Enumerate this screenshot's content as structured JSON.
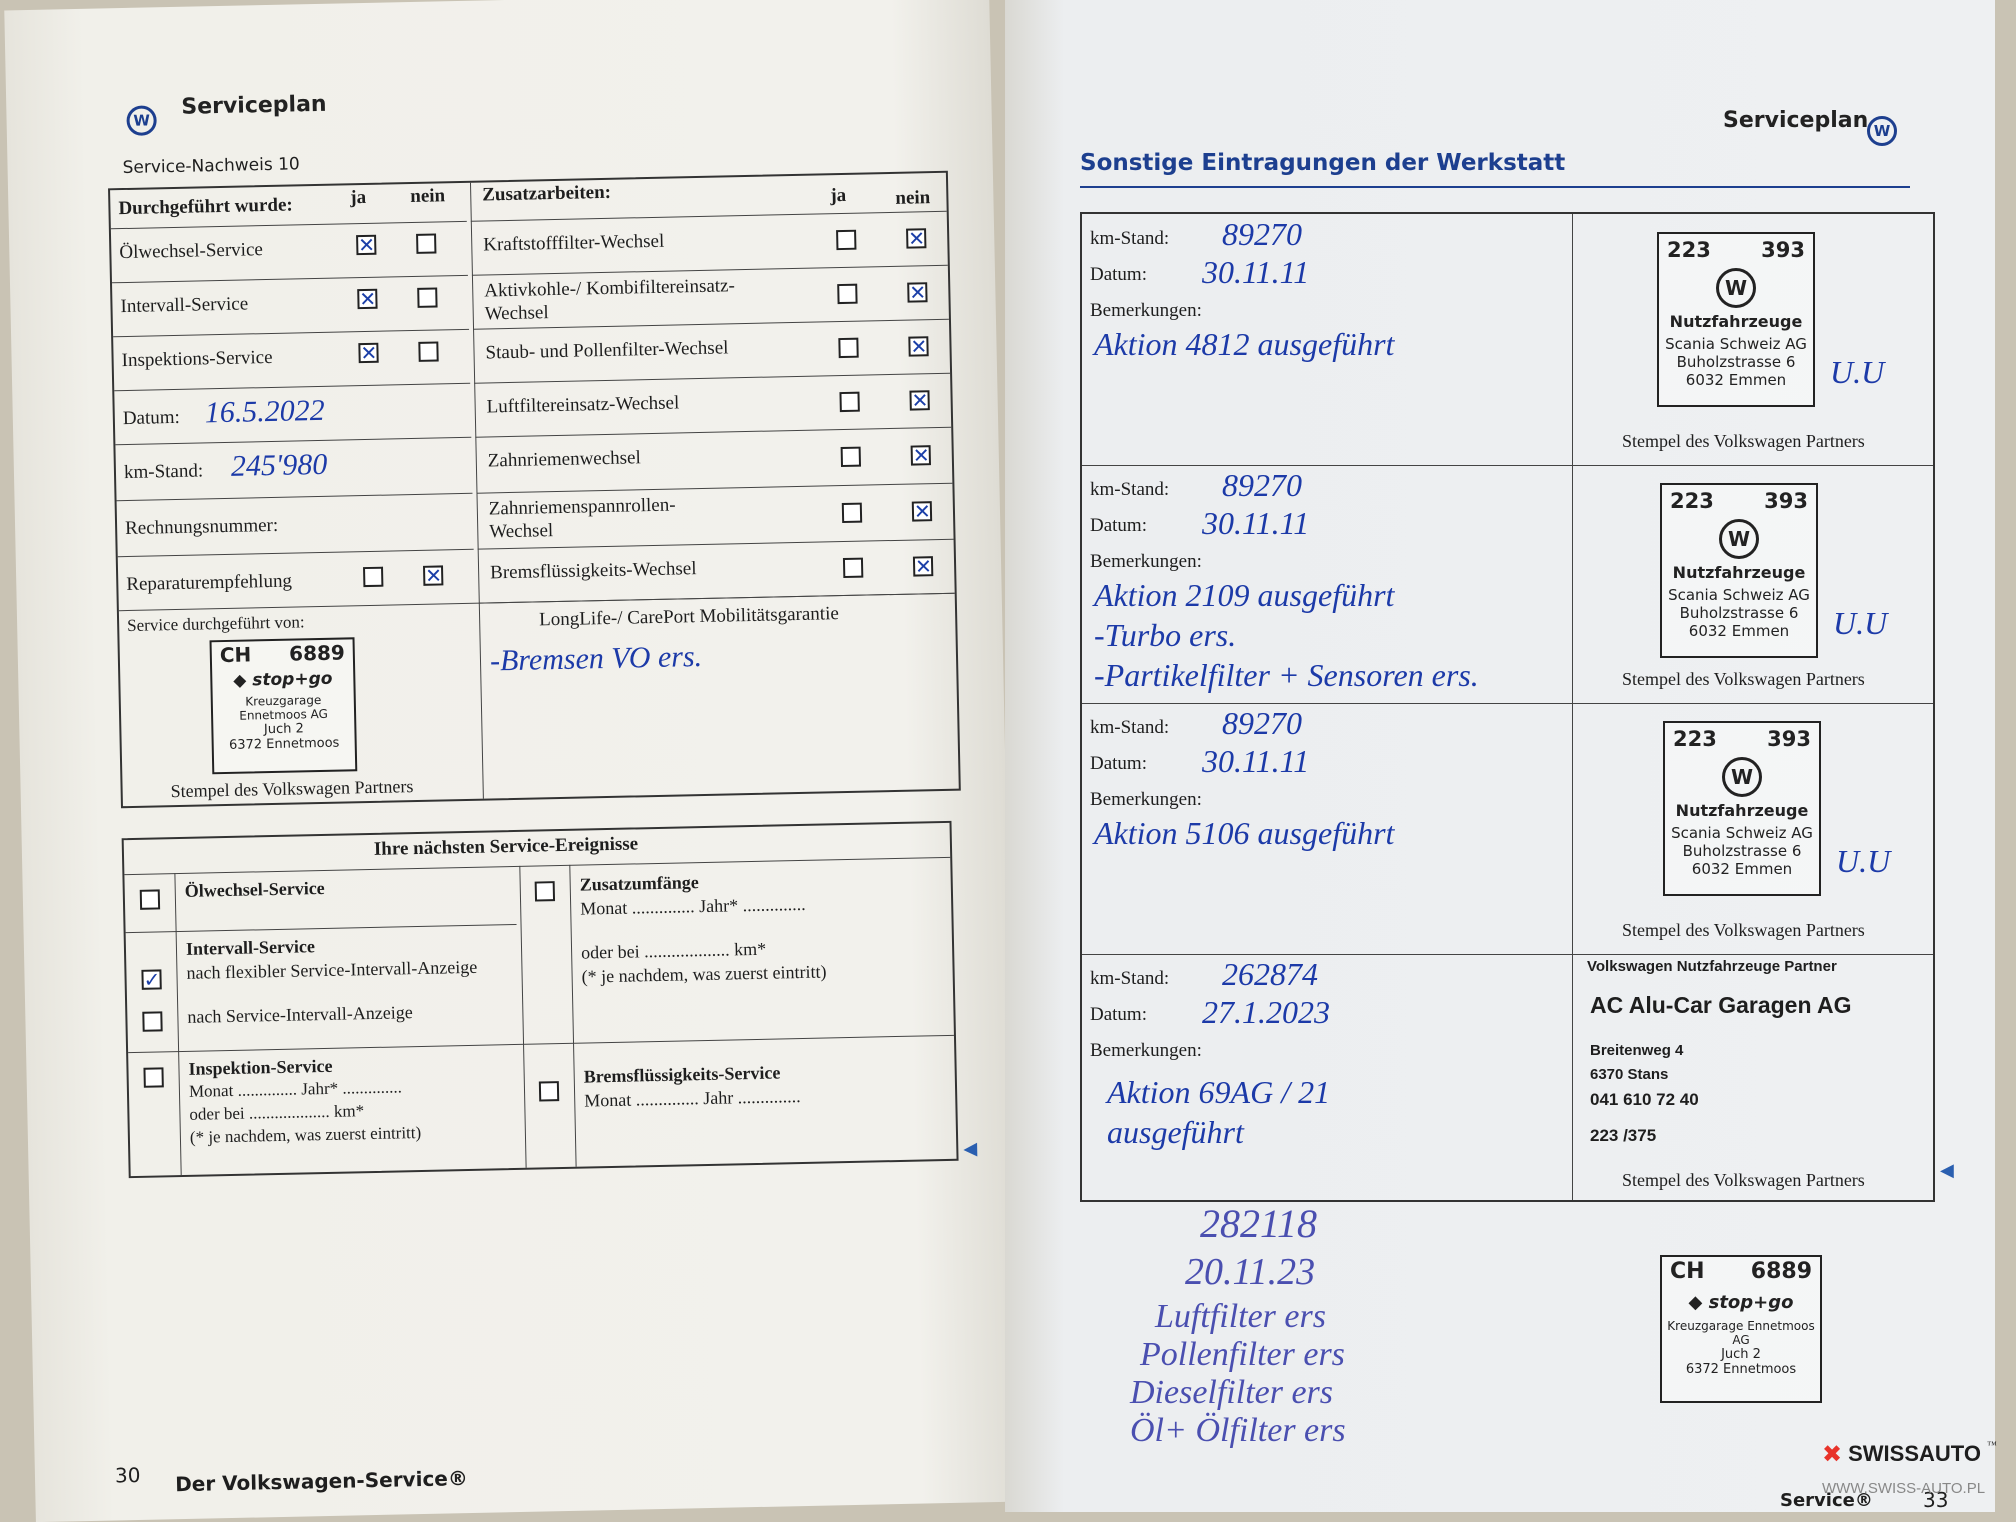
{
  "left_page": {
    "header": {
      "logo": "vw-logo",
      "title": "Serviceplan",
      "subtitle": "Service-Nachweis 10"
    },
    "performed": {
      "header": "Durchgeführt wurde:",
      "ja": "ja",
      "nein": "nein",
      "items": [
        {
          "label": "Ölwechsel-Service",
          "ja": true,
          "nein": false
        },
        {
          "label": "Intervall-Service",
          "ja": true,
          "nein": false
        },
        {
          "label": "Inspektions-Service",
          "ja": true,
          "nein": false
        }
      ],
      "date_label": "Datum:",
      "date_value": "16.5.2022",
      "km_label": "km-Stand:",
      "km_value": "245'980",
      "invoice_label": "Rechnungsnummer:",
      "repair_label": "Reparaturempfehlung",
      "repair_ja": false,
      "repair_nein": true,
      "service_by_label": "Service durchgeführt von:",
      "stamp": {
        "country": "CH",
        "number": "6889",
        "brand": "stop+go",
        "company": "Kreuzgarage Ennetmoos AG",
        "street": "Juch 2",
        "city": "6372 Ennetmoos"
      },
      "stamp_caption": "Stempel des Volkswagen Partners"
    },
    "extra": {
      "header": "Zusatzarbeiten:",
      "ja": "ja",
      "nein": "nein",
      "items": [
        {
          "label": "Kraftstofffilter-Wechsel",
          "ja": false,
          "nein": true
        },
        {
          "label": "Aktivkohle-/ Kombifiltereinsatz-",
          "label2": "Wechsel",
          "ja": false,
          "nein": true
        },
        {
          "label": "Staub- und Pollenfilter-Wechsel",
          "ja": false,
          "nein": true
        },
        {
          "label": "Luftfiltereinsatz-Wechsel",
          "ja": false,
          "nein": true
        },
        {
          "label": "Zahnriemenwechsel",
          "ja": false,
          "nein": true
        },
        {
          "label": "Zahnriemenspannrollen-",
          "label2": "Wechsel",
          "ja": false,
          "nein": true
        },
        {
          "label": "Bremsflüssigkeits-Wechsel",
          "ja": false,
          "nein": true
        }
      ],
      "longlife_label": "LongLife-/ CarePort Mobilitätsgarantie",
      "longlife_note": "-Bremsen VO ers."
    },
    "next": {
      "header": "Ihre nächsten Service-Ereignisse",
      "oil": "Ölwechsel-Service",
      "oil_checked": false,
      "interval": "Intervall-Service",
      "interval_flex": "nach flexibler Service-Intervall-Anzeige",
      "interval_flex_checked": true,
      "interval_sia": "nach Service-Intervall-Anzeige",
      "interval_sia_checked": false,
      "inspection": "Inspektion-Service",
      "inspection_checked": false,
      "inspection_month": "Monat .............. Jahr* ..............",
      "inspection_km": "oder bei ................... km*",
      "inspection_note": "(* je nachdem, was zuerst eintritt)",
      "extra": "Zusatzumfänge",
      "extra_checked": false,
      "extra_month": "Monat .............. Jahr* ..............",
      "extra_km": "oder bei ................... km*",
      "extra_note": "(* je nachdem, was zuerst eintritt)",
      "brake": "Bremsflüssigkeits-Service",
      "brake_checked": false,
      "brake_month": "Monat .............. Jahr .............."
    },
    "footer": {
      "page_number": "30",
      "title": "Der Volkswagen-Service®"
    }
  },
  "right_page": {
    "header": {
      "title": "Serviceplan",
      "logo": "vw-logo",
      "section": "Sonstige Eintragungen der Werkstatt"
    },
    "labels": {
      "km": "km-Stand:",
      "date": "Datum:",
      "remarks": "Bemerkungen:",
      "stamp_caption": "Stempel des Volkswagen Partners"
    },
    "entries": [
      {
        "km": "89270",
        "date": "30.11.11",
        "remarks": [
          "Aktion 4812 ausgeführt"
        ],
        "stamp": {
          "left": "223",
          "right": "393",
          "title": "Nutzfahrzeuge",
          "company": "Scania Schweiz AG",
          "street": "Buholzstrasse 6",
          "city": "6032 Emmen"
        },
        "signature": "U.U"
      },
      {
        "km": "89270",
        "date": "30.11.11",
        "remarks": [
          "Aktion 2109 ausgeführt",
          "-Turbo ers.",
          "-Partikelfilter + Sensoren ers."
        ],
        "stamp": {
          "left": "223",
          "right": "393",
          "title": "Nutzfahrzeuge",
          "company": "Scania Schweiz AG",
          "street": "Buholzstrasse 6",
          "city": "6032 Emmen"
        },
        "signature": "U.U"
      },
      {
        "km": "89270",
        "date": "30.11.11",
        "remarks": [
          "Aktion 5106 ausgeführt"
        ],
        "stamp": {
          "left": "223",
          "right": "393",
          "title": "Nutzfahrzeuge",
          "company": "Scania Schweiz AG",
          "street": "Buholzstrasse 6",
          "city": "6032 Emmen"
        },
        "signature": "U.U"
      },
      {
        "km": "262874",
        "date": "27.1.2023",
        "remarks": [
          "Aktion 69AG / 21",
          "ausgeführt"
        ],
        "stamp": {
          "top": "Volkswagen Nutzfahrzeuge Partner",
          "company": "AC Alu-Car Garagen AG",
          "street": "Breitenweg 4",
          "city": "6370 Stans",
          "phone": "041 610 72 40",
          "code": "223 /375"
        }
      }
    ],
    "handwritten": {
      "km": "282118",
      "date": "20.11.23",
      "lines": [
        "Luftfilter ers",
        "Pollenfilter ers",
        "Dieselfilter ers",
        "Öl+ Ölfilter ers"
      ]
    },
    "bottom_stamp": {
      "country": "CH",
      "number": "6889",
      "brand": "stop+go",
      "company": "Kreuzgarage Ennetmoos AG",
      "street": "Juch 2",
      "city": "6372 Ennetmoos"
    },
    "footer": {
      "title": "Service®",
      "page_number": "33"
    }
  },
  "watermark": {
    "brand": "SWISSAUTO",
    "tm": "™",
    "url": "WWW.SWISS-AUTO.PL",
    "color": "#e8332a"
  }
}
